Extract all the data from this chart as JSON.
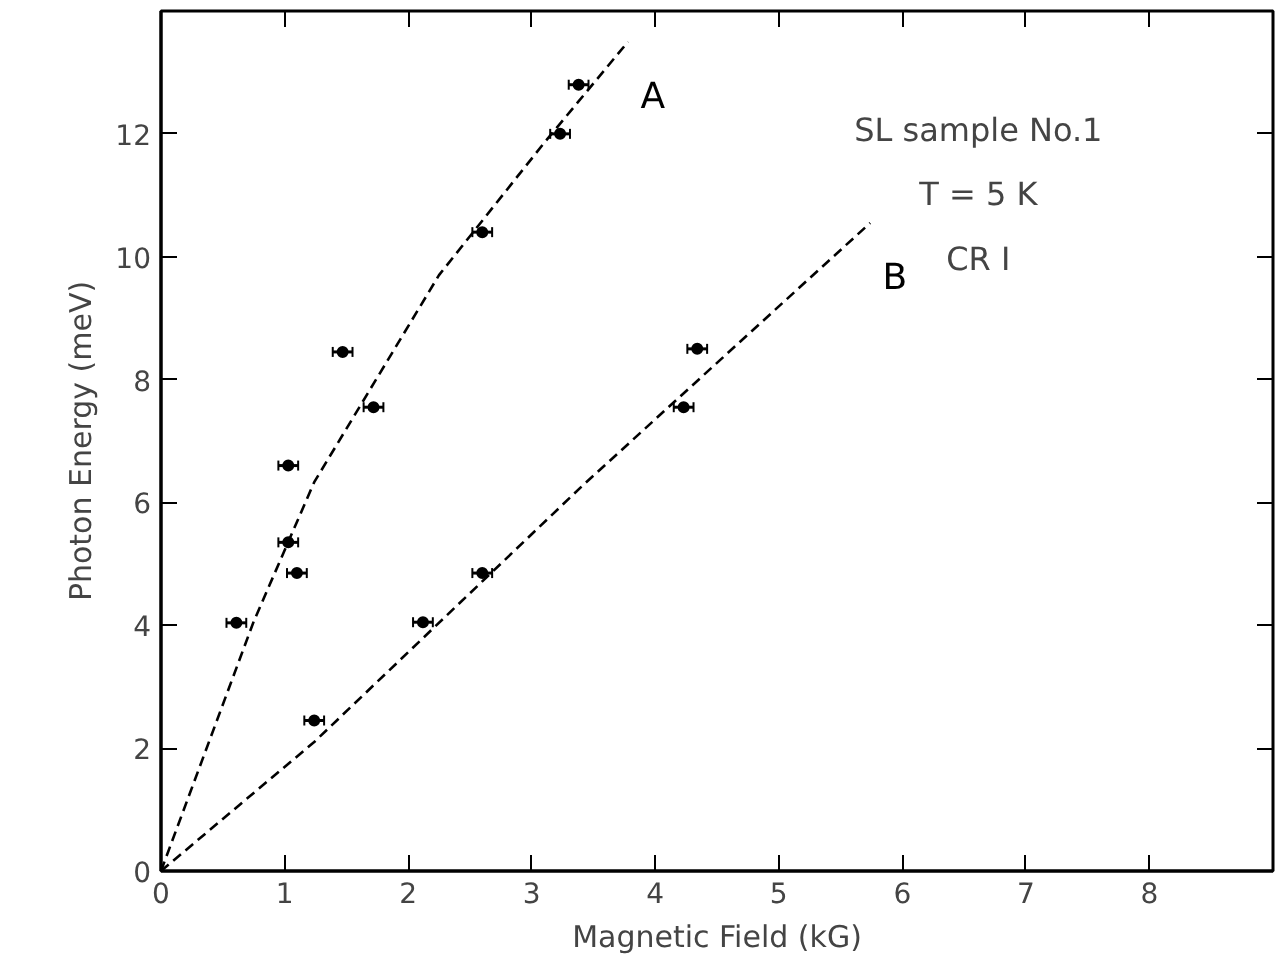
{
  "chart_data": {
    "type": "scatter",
    "xlabel": "Magnetic Field (kG)",
    "ylabel": "Photon Energy (meV)",
    "xlim": [
      0,
      9
    ],
    "ylim": [
      0,
      14
    ],
    "xticks": [
      0,
      1,
      2,
      3,
      4,
      5,
      6,
      7,
      8
    ],
    "yticks": [
      0,
      2,
      4,
      6,
      8,
      10,
      12
    ],
    "grid": false,
    "marker": "circle",
    "annotations": [
      "SL sample No.1",
      "T = 5 K",
      "CR I"
    ],
    "series": [
      {
        "color": "#000000",
        "x": [
          0.61,
          1.03,
          1.1,
          1.03,
          1.47,
          1.72,
          2.6,
          3.23,
          3.38
        ],
        "values": [
          4.04,
          5.35,
          4.85,
          6.6,
          8.45,
          7.55,
          10.4,
          12.0,
          12.8
        ],
        "xerrors": [
          0.08,
          0.08,
          0.08,
          0.08,
          0.08,
          0.08,
          0.08,
          0.08,
          0.08
        ]
      },
      {
        "color": "#000000",
        "x": [
          1.24,
          2.12,
          2.6,
          4.23,
          4.34
        ],
        "values": [
          2.45,
          4.05,
          4.85,
          7.55,
          8.5
        ],
        "xerrors": [
          0.08,
          0.08,
          0.08,
          0.08,
          0.08
        ]
      },
      {
        "type": "line",
        "name": "A",
        "color": "#000000",
        "line_style": "dashed",
        "marker": "none",
        "x": [
          0,
          0.75,
          1.24,
          2.25,
          3.1,
          3.78
        ],
        "values": [
          0,
          4.06,
          6.33,
          9.7,
          11.85,
          13.5
        ]
      },
      {
        "type": "line",
        "name": "B",
        "color": "#000000",
        "line_style": "dashed",
        "marker": "none",
        "x": [
          0,
          1.24,
          3.41,
          5.74
        ],
        "values": [
          0,
          2.1,
          6.27,
          10.55
        ]
      }
    ]
  }
}
